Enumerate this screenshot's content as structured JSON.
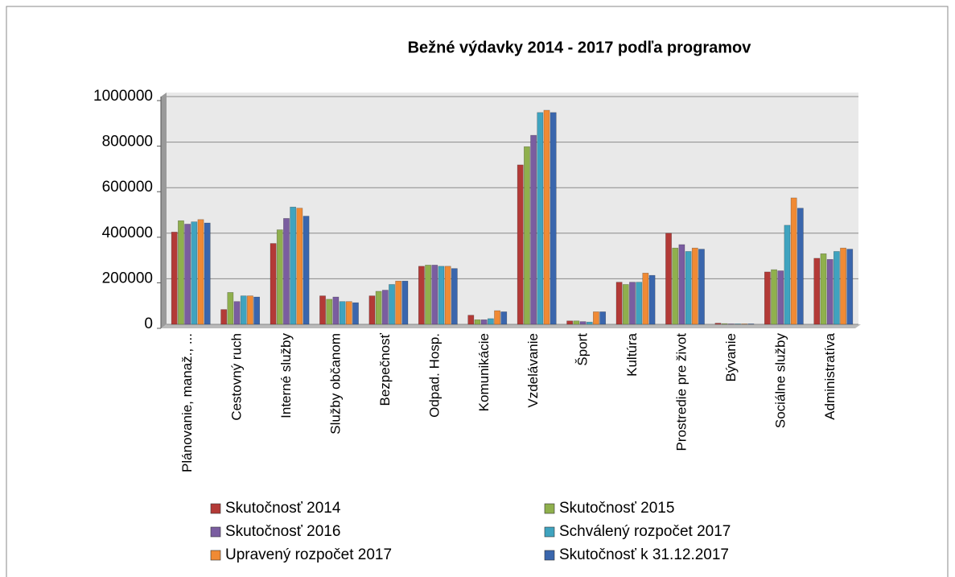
{
  "chart_data": {
    "type": "bar",
    "title": "Bežné výdavky 2014 - 2017 podľa programov",
    "categories": [
      "Plánovanie, manaž., ...",
      "Cestovný ruch",
      "Interné služby",
      "Služby občanom",
      "Bezpečnosť",
      "Odpad. Hosp.",
      "Komunikácie",
      "Vzdelávanie",
      "Šport",
      "Kultúra",
      "Prostredie pre život",
      "Bývanie",
      "Sociálne služby",
      "Administratíva"
    ],
    "series": [
      {
        "name": "Skutočnosť 2014",
        "color": "#b33a37",
        "values": [
          405000,
          65000,
          355000,
          125000,
          125000,
          255000,
          40000,
          700000,
          15000,
          185000,
          400000,
          5000,
          230000,
          290000
        ]
      },
      {
        "name": "Skutočnosť 2015",
        "color": "#8fb04d",
        "values": [
          455000,
          140000,
          415000,
          110000,
          145000,
          260000,
          20000,
          780000,
          15000,
          175000,
          335000,
          3000,
          240000,
          310000
        ]
      },
      {
        "name": "Skutočnosť 2016",
        "color": "#7a5da0",
        "values": [
          440000,
          100000,
          465000,
          120000,
          150000,
          260000,
          20000,
          830000,
          12000,
          185000,
          350000,
          2000,
          235000,
          285000
        ]
      },
      {
        "name": "Schválený rozpočet 2017",
        "color": "#3fa3bf",
        "values": [
          450000,
          125000,
          515000,
          100000,
          175000,
          255000,
          25000,
          930000,
          10000,
          185000,
          320000,
          2000,
          435000,
          320000
        ]
      },
      {
        "name": "Upravený rozpočet 2017",
        "color": "#f08a34",
        "values": [
          460000,
          125000,
          510000,
          100000,
          190000,
          255000,
          60000,
          940000,
          55000,
          225000,
          335000,
          2000,
          555000,
          335000
        ]
      },
      {
        "name": "Skutočnosť k 31.12.2017",
        "color": "#3a66ad",
        "values": [
          445000,
          120000,
          475000,
          95000,
          190000,
          245000,
          55000,
          930000,
          55000,
          215000,
          330000,
          2000,
          510000,
          330000
        ]
      }
    ],
    "ylim": [
      0,
      1000000
    ],
    "yticks": [
      0,
      200000,
      400000,
      600000,
      800000,
      1000000
    ],
    "grid": true
  }
}
